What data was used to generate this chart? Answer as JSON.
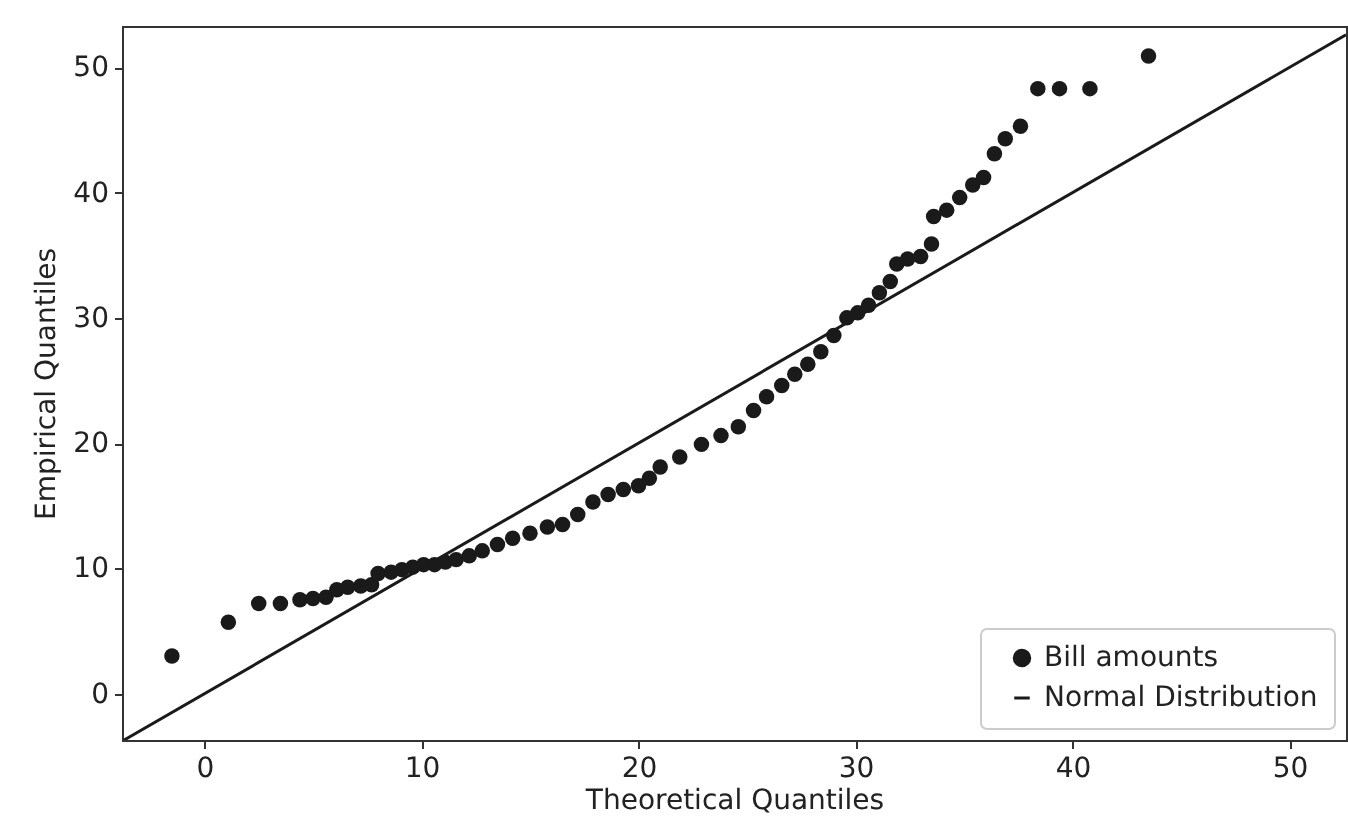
{
  "chart_data": {
    "type": "scatter",
    "xlabel": "Theoretical Quantiles",
    "ylabel": "Empirical Quantiles",
    "xlim": [
      -3.8,
      52.6
    ],
    "ylim": [
      -3.7,
      53.3
    ],
    "xticks": [
      0,
      10,
      20,
      30,
      40,
      50
    ],
    "yticks": [
      0,
      10,
      20,
      30,
      40,
      50
    ],
    "grid": false,
    "legend": "bottom right",
    "series": [
      {
        "name": "Bill amounts",
        "marker": "circle",
        "color": "#1a1a1a",
        "x": [
          -1.5,
          1.1,
          2.5,
          3.5,
          4.4,
          5.0,
          5.6,
          6.1,
          6.6,
          7.2,
          7.7,
          8.0,
          8.6,
          9.1,
          9.6,
          10.1,
          10.6,
          11.1,
          11.6,
          12.2,
          12.8,
          13.5,
          14.2,
          15.0,
          15.8,
          16.5,
          17.2,
          17.9,
          18.6,
          19.3,
          20.0,
          20.5,
          21.0,
          21.9,
          22.9,
          23.8,
          24.6,
          25.3,
          25.9,
          26.6,
          27.2,
          27.8,
          28.4,
          29.0,
          29.6,
          30.1,
          30.6,
          31.1,
          31.6,
          31.9,
          32.4,
          33.0,
          33.5,
          33.6,
          34.2,
          34.8,
          35.4,
          35.9,
          36.4,
          36.9,
          37.6,
          38.4,
          39.4,
          40.8,
          43.5
        ],
        "values": [
          3.0,
          5.7,
          7.2,
          7.2,
          7.5,
          7.6,
          7.7,
          8.3,
          8.5,
          8.6,
          8.7,
          9.6,
          9.7,
          9.9,
          10.1,
          10.3,
          10.3,
          10.5,
          10.7,
          11.0,
          11.4,
          11.9,
          12.4,
          12.8,
          13.3,
          13.5,
          14.3,
          15.3,
          15.9,
          16.3,
          16.6,
          17.2,
          18.1,
          18.9,
          19.9,
          20.6,
          21.3,
          22.6,
          23.7,
          24.6,
          25.5,
          26.3,
          27.3,
          28.6,
          30.0,
          30.4,
          31.0,
          32.0,
          32.9,
          34.3,
          34.7,
          34.9,
          35.9,
          38.1,
          38.6,
          39.6,
          40.6,
          41.2,
          43.1,
          44.3,
          45.3,
          48.3,
          48.3,
          48.3,
          50.9
        ]
      },
      {
        "name": "Normal Distribution",
        "type": "line",
        "color": "#1a1a1a",
        "marker": "none",
        "x": [
          -3.7,
          52.6
        ],
        "values": [
          -3.7,
          52.6
        ]
      }
    ]
  }
}
